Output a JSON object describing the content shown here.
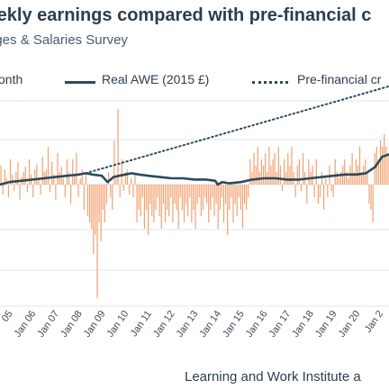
{
  "chart_data": {
    "type": "bar+line",
    "title": "weekly earnings compared with pre-financial c",
    "subtitle": "ages & Salaries Survey",
    "source": "Learning and Work Institute a",
    "legend": [
      {
        "label": "onth",
        "style": "bar",
        "color": "#f2a271"
      },
      {
        "label": "Real AWE (2015 £)",
        "style": "solid",
        "color": "#2b4a5e"
      },
      {
        "label": "Pre-financial cr",
        "style": "dotted",
        "color": "#2b4a5e"
      }
    ],
    "x_tick_labels": [
      "05",
      "Jan 06",
      "Jan 07",
      "Jan 08",
      "Jan 09",
      "Jan 10",
      "Jan 11",
      "Jan 12",
      "Jan 13",
      "Jan 14",
      "Jan 15",
      "Jan 16",
      "Jan 17",
      "Jan 18",
      "Jan 19",
      "Jan 20",
      "Jan 2"
    ],
    "x_tick_years": [
      2005,
      2006,
      2007,
      2008,
      2009,
      2010,
      2011,
      2012,
      2013,
      2014,
      2015,
      2016,
      2017,
      2018,
      2019,
      2020,
      2021
    ],
    "x_range": [
      2004.6,
      2021.4
    ],
    "y_range": [
      -1.0,
      1.0
    ],
    "grid": true,
    "real_awe": [
      [
        2004.6,
        0.0
      ],
      [
        2005.0,
        0.02
      ],
      [
        2005.5,
        0.03
      ],
      [
        2006.0,
        0.04
      ],
      [
        2006.5,
        0.05
      ],
      [
        2007.0,
        0.06
      ],
      [
        2007.5,
        0.07
      ],
      [
        2008.0,
        0.08
      ],
      [
        2008.3,
        0.09
      ],
      [
        2008.6,
        0.08
      ],
      [
        2009.0,
        0.07
      ],
      [
        2009.25,
        0.02
      ],
      [
        2009.5,
        0.06
      ],
      [
        2010.0,
        0.08
      ],
      [
        2010.3,
        0.09
      ],
      [
        2010.6,
        0.08
      ],
      [
        2011.0,
        0.07
      ],
      [
        2011.5,
        0.06
      ],
      [
        2012.0,
        0.05
      ],
      [
        2012.5,
        0.05
      ],
      [
        2013.0,
        0.04
      ],
      [
        2013.5,
        0.04
      ],
      [
        2013.9,
        0.03
      ],
      [
        2014.0,
        0.0
      ],
      [
        2014.2,
        0.02
      ],
      [
        2014.5,
        0.01
      ],
      [
        2015.0,
        0.02
      ],
      [
        2015.5,
        0.04
      ],
      [
        2016.0,
        0.05
      ],
      [
        2016.5,
        0.05
      ],
      [
        2017.0,
        0.04
      ],
      [
        2017.5,
        0.04
      ],
      [
        2018.0,
        0.05
      ],
      [
        2018.5,
        0.06
      ],
      [
        2019.0,
        0.07
      ],
      [
        2019.5,
        0.08
      ],
      [
        2020.0,
        0.08
      ],
      [
        2020.4,
        0.09
      ],
      [
        2020.8,
        0.14
      ],
      [
        2021.1,
        0.22
      ],
      [
        2021.4,
        0.24
      ]
    ],
    "pre_crisis_trend": [
      [
        2008.3,
        0.09
      ],
      [
        2021.4,
        0.78
      ]
    ],
    "monthly_growth": [
      0.15,
      -0.08,
      0.12,
      0.05,
      -0.1,
      0.2,
      0.08,
      -0.05,
      0.1,
      0.18,
      -0.12,
      0.06,
      0.1,
      0.14,
      -0.06,
      0.2,
      0.08,
      -0.1,
      0.12,
      0.16,
      0.05,
      -0.08,
      0.22,
      0.1,
      0.12,
      0.3,
      -0.06,
      0.18,
      0.08,
      -0.12,
      0.25,
      0.1,
      0.14,
      0.05,
      -0.1,
      0.2,
      0.1,
      -0.15,
      0.2,
      0.08,
      0.25,
      -0.1,
      0.05,
      0.12,
      -0.2,
      0.1,
      -0.25,
      -0.3,
      -0.35,
      -0.55,
      -0.4,
      -0.9,
      -0.3,
      -0.45,
      -0.2,
      -0.3,
      -0.15,
      0.1,
      -0.1,
      -0.2,
      0.35,
      0.05,
      0.6,
      -0.1,
      0.2,
      -0.05,
      0.1,
      0.12,
      -0.08,
      0.05,
      -0.1,
      0.08,
      -0.3,
      -0.2,
      -0.25,
      -0.1,
      -0.35,
      -0.2,
      -0.4,
      -0.15,
      -0.25,
      -0.3,
      -0.2,
      -0.1,
      -0.25,
      -0.35,
      -0.15,
      -0.3,
      -0.2,
      -0.25,
      -0.1,
      -0.3,
      -0.15,
      -0.2,
      -0.35,
      -0.1,
      -0.2,
      -0.3,
      -0.15,
      -0.25,
      -0.1,
      -0.3,
      -0.2,
      -0.35,
      -0.15,
      -0.1,
      -0.25,
      -0.2,
      -0.1,
      -0.15,
      -0.3,
      -0.2,
      -0.1,
      -0.25,
      -0.15,
      -0.35,
      -0.2,
      -0.1,
      -0.3,
      -0.15,
      -0.4,
      -0.2,
      -0.1,
      -0.3,
      -0.15,
      -0.25,
      -0.1,
      -0.2,
      -0.35,
      -0.15,
      -0.2,
      -0.1,
      0.2,
      0.1,
      0.25,
      0.15,
      0.3,
      0.1,
      0.2,
      0.15,
      0.25,
      0.1,
      0.3,
      0.15,
      0.2,
      0.25,
      0.1,
      0.3,
      0.15,
      -0.05,
      0.2,
      0.1,
      0.25,
      0.15,
      0.3,
      0.1,
      -0.1,
      0.15,
      0.2,
      -0.05,
      0.25,
      0.1,
      -0.15,
      0.2,
      0.1,
      0.15,
      -0.1,
      0.2,
      -0.15,
      -0.1,
      0.1,
      -0.2,
      0.05,
      -0.1,
      0.15,
      -0.05,
      -0.1,
      0.2,
      0.1,
      0.05,
      0.1,
      0.15,
      0.2,
      0.1,
      0.05,
      0.15,
      0.25,
      0.1,
      0.2,
      0.15,
      0.3,
      0.1,
      0.15,
      0.2,
      0.1,
      -0.15,
      -0.2,
      -0.3,
      0.25,
      0.3,
      0.2,
      0.35,
      0.3,
      0.4,
      0.3,
      0.25
    ]
  }
}
